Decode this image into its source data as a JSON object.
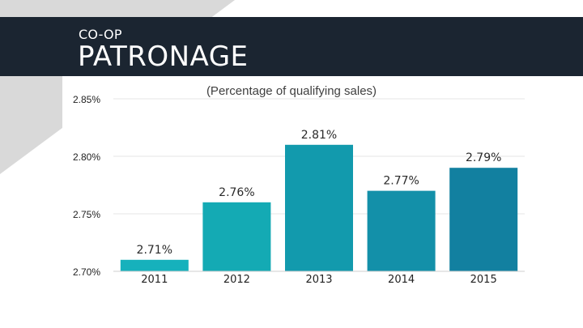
{
  "header": {
    "subtitle": "CO-OP",
    "title": "PATRONAGE"
  },
  "colors": {
    "header_band": "#1b2531",
    "decor_triangle": "#d9d9d9",
    "grid": "#e6e6e6",
    "bar_2011": "#16b1bc",
    "bar_2012": "#14aab4",
    "bar_2013": "#129aad",
    "bar_2014": "#1390a9",
    "bar_2015": "#1280a0"
  },
  "chart_data": {
    "type": "bar",
    "title": "(Percentage of qualifying sales)",
    "xlabel": "",
    "ylabel": "",
    "categories": [
      "2011",
      "2012",
      "2013",
      "2014",
      "2015"
    ],
    "values": [
      2.71,
      2.76,
      2.81,
      2.77,
      2.79
    ],
    "data_labels": [
      "2.71%",
      "2.76%",
      "2.81%",
      "2.77%",
      "2.79%"
    ],
    "ylim": [
      2.7,
      2.85
    ],
    "yticks": [
      2.7,
      2.75,
      2.8,
      2.85
    ],
    "ytick_labels": [
      "2.70%",
      "2.75%",
      "2.80%",
      "2.85%"
    ],
    "grid": true,
    "legend": "none"
  }
}
